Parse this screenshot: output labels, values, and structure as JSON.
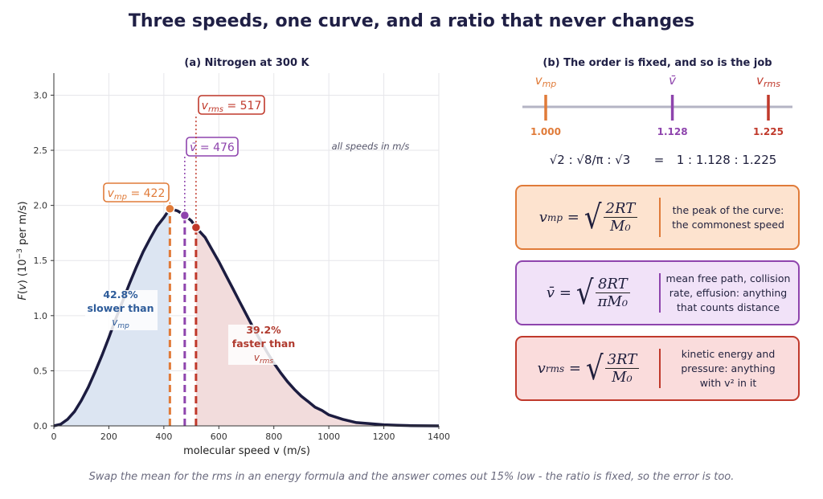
{
  "title": "Three speeds, one curve, and a ratio that never changes",
  "caption": "Swap the mean for the rms in an energy formula and the answer comes out 15% low - the ratio is fixed, so the error is too.",
  "colors": {
    "curve": "#1c1c40",
    "mp": "#e07b39",
    "mean": "#8e44ad",
    "rms": "#c0392b",
    "slow_fill": "#dce5f2",
    "fast_fill": "#f2dcdc",
    "slow_text": "#2e5c9a",
    "fast_text": "#b03a2e"
  },
  "chart_data": {
    "type": "line",
    "title": "(a)  Nitrogen at 300 K",
    "xlabel": "molecular speed v  (m/s)",
    "ylabel": "F(v)  (10^-3 per m/s)",
    "xlim": [
      0,
      1400
    ],
    "ylim": [
      0,
      3.2
    ],
    "xticks": [
      "0",
      "200",
      "400",
      "600",
      "800",
      "1000",
      "1200",
      "1400"
    ],
    "yticks": [
      "0.0",
      "0.5",
      "1.0",
      "1.5",
      "2.0",
      "2.5",
      "3.0"
    ],
    "grid": true,
    "x": [
      0,
      25,
      50,
      75,
      100,
      125,
      150,
      175,
      200,
      225,
      250,
      275,
      300,
      325,
      350,
      375,
      400,
      422,
      450,
      476,
      500,
      517,
      550,
      575,
      600,
      625,
      650,
      675,
      700,
      725,
      750,
      775,
      800,
      825,
      850,
      875,
      900,
      925,
      950,
      975,
      1000,
      1050,
      1100,
      1150,
      1200,
      1250,
      1300,
      1350,
      1400
    ],
    "y": [
      0.0,
      0.015,
      0.06,
      0.13,
      0.23,
      0.35,
      0.49,
      0.64,
      0.8,
      0.97,
      1.13,
      1.29,
      1.44,
      1.58,
      1.7,
      1.81,
      1.89,
      1.97,
      1.95,
      1.91,
      1.86,
      1.8,
      1.71,
      1.6,
      1.49,
      1.37,
      1.25,
      1.13,
      1.01,
      0.89,
      0.78,
      0.67,
      0.57,
      0.48,
      0.4,
      0.33,
      0.27,
      0.22,
      0.17,
      0.14,
      0.1,
      0.06,
      0.03,
      0.02,
      0.01,
      0.005,
      0.002,
      0.001,
      0.0
    ],
    "markers": [
      {
        "name": "v_mp",
        "label": "v_mp = 422",
        "x": 422,
        "y": 1.97
      },
      {
        "name": "v_mean",
        "label": "v̄ = 476",
        "x": 476,
        "y": 1.91
      },
      {
        "name": "v_rms",
        "label": "v_rms = 517",
        "x": 517,
        "y": 1.8
      }
    ],
    "annotations": {
      "units_note": "all speeds in m/s",
      "slow_pct": "42.8%",
      "slow_text": "slower than",
      "slow_ref": "v_mp",
      "fast_pct": "39.2%",
      "fast_text": "faster than",
      "fast_ref": "v_rms"
    }
  },
  "panel_b": {
    "title": "(b)  The order is fixed, and so is the job",
    "ruler": [
      {
        "name": "v_mp",
        "value": "1.000",
        "ratio": 1.0
      },
      {
        "name": "v̄",
        "value": "1.128",
        "ratio": 1.128
      },
      {
        "name": "v_rms",
        "value": "1.225",
        "ratio": 1.225
      }
    ],
    "ratio_line": {
      "roots": "√2  :  √8/π  :  √3",
      "equals": "=",
      "result": "1 : 1.128 : 1.225"
    },
    "cards": [
      {
        "name": "mp",
        "symbol": "v",
        "sub": "mp",
        "num": "2RT",
        "den": "M₀",
        "note_1": "the peak of the curve:",
        "note_2": "the commonest speed",
        "note_3": ""
      },
      {
        "name": "mean",
        "symbol": "v̄",
        "sub": "",
        "num": "8RT",
        "den": "πM₀",
        "note_1": "mean free path, collision",
        "note_2": "rate, effusion: anything",
        "note_3": "that counts distance"
      },
      {
        "name": "rms",
        "symbol": "v",
        "sub": "rms",
        "num": "3RT",
        "den": "M₀",
        "note_1": "kinetic energy and",
        "note_2": "pressure: anything",
        "note_3": "with v² in it"
      }
    ]
  }
}
